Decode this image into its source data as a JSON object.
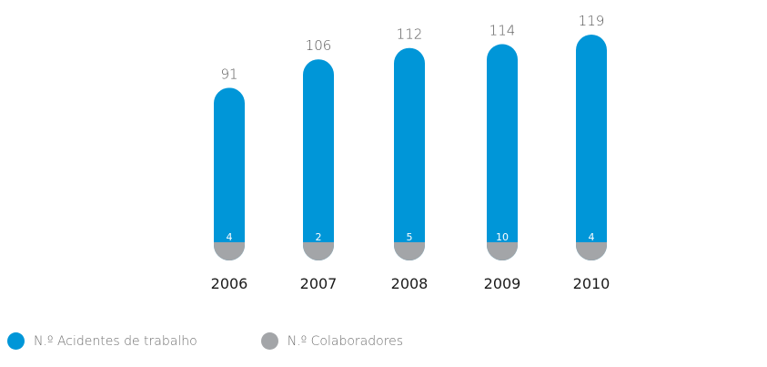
{
  "chart_data": {
    "type": "bar",
    "categories": [
      "2006",
      "2007",
      "2008",
      "2009",
      "2010"
    ],
    "series": [
      {
        "name": "N.º Acidentes de trabalho",
        "values": [
          91,
          106,
          112,
          114,
          119
        ],
        "color": "#0096d8"
      },
      {
        "name": "N.º Colaboradores",
        "values": [
          4,
          2,
          5,
          10,
          4
        ],
        "color": "#a3a5a8"
      }
    ],
    "title": "",
    "xlabel": "",
    "ylabel": "",
    "grid": false,
    "legend_position": "bottom-left"
  }
}
